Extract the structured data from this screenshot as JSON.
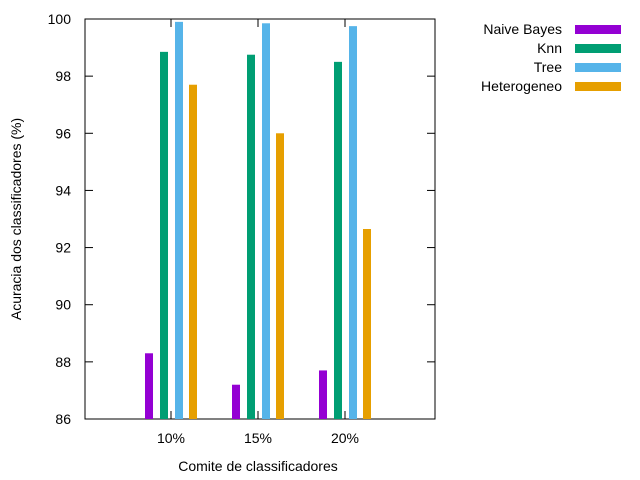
{
  "chart_data": {
    "type": "bar",
    "title": "",
    "xlabel": "Comite de classificadores",
    "ylabel": "Acuracia dos classificadores (%)",
    "ylim": [
      86,
      100
    ],
    "yticks": [
      "86",
      "88",
      "90",
      "92",
      "94",
      "96",
      "98",
      "100"
    ],
    "categories": [
      "10%",
      "15%",
      "20%"
    ],
    "legend_position": "top-right-outside",
    "grid": false,
    "series": [
      {
        "name": "Naive Bayes",
        "color": "#9400d3",
        "values": [
          88.3,
          87.2,
          87.7
        ]
      },
      {
        "name": "Knn",
        "color": "#009e73",
        "values": [
          98.85,
          98.75,
          98.5
        ]
      },
      {
        "name": "Tree",
        "color": "#56b4e9",
        "values": [
          99.9,
          99.85,
          99.75
        ]
      },
      {
        "name": "Heterogeneo",
        "color": "#e69f00",
        "values": [
          97.7,
          96.0,
          92.65
        ]
      }
    ]
  }
}
